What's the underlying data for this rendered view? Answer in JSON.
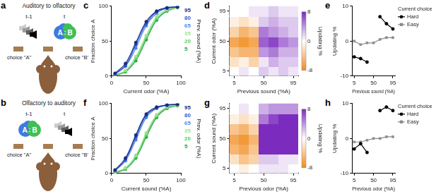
{
  "chart_data": [
    {
      "panel_label": "c",
      "type": "line",
      "x_label": "Current odor (%A)",
      "y_label": "Fraction choice A",
      "x": [
        5,
        20,
        35,
        50,
        65,
        80,
        95
      ],
      "xlim": [
        0,
        100
      ],
      "xticks": [
        0,
        50,
        100
      ],
      "ylim": [
        0,
        100
      ],
      "yticks": [
        0,
        50,
        100
      ],
      "grid": false,
      "legend": "right",
      "legend_title": "Prev. sound (%A)",
      "marker": "circle",
      "line_style": "smooth",
      "series": [
        {
          "name": "95",
          "color": "#1b2a80",
          "values": [
            4,
            18,
            48,
            78,
            93,
            98,
            99
          ]
        },
        {
          "name": "80",
          "color": "#2f55d4",
          "values": [
            3,
            15,
            45,
            75,
            92,
            97,
            99
          ]
        },
        {
          "name": "65",
          "color": "#4a86e8",
          "values": [
            3,
            14,
            40,
            72,
            90,
            97,
            99
          ]
        },
        {
          "name": "35",
          "color": "#9fe08e",
          "values": [
            2,
            8,
            28,
            58,
            85,
            95,
            98
          ]
        },
        {
          "name": "20",
          "color": "#4fcf5e",
          "values": [
            2,
            7,
            25,
            55,
            82,
            94,
            98
          ]
        },
        {
          "name": "5",
          "color": "#23a248",
          "values": [
            1,
            6,
            22,
            52,
            80,
            93,
            98
          ]
        }
      ]
    },
    {
      "panel_label": "d",
      "type": "heatmap",
      "x_label": "Previous sound (%A)",
      "y_label": "Current odor (%A)",
      "x": [
        5,
        20,
        35,
        50,
        65,
        80,
        95
      ],
      "y": [
        5,
        20,
        35,
        50,
        65,
        80,
        95
      ],
      "xlim": [
        -2.5,
        102.5
      ],
      "xticks": [
        5,
        50,
        95
      ],
      "ylim": [
        -2.5,
        102.5
      ],
      "yticks": [
        5,
        50,
        95
      ],
      "cells": [
        [
          0,
          1,
          0,
          2,
          1,
          2,
          1
        ],
        [
          -2,
          -1,
          -3,
          1,
          3,
          2,
          2
        ],
        [
          -4,
          -5,
          -5,
          4,
          5,
          3,
          3
        ],
        [
          -6,
          -7,
          -6,
          6,
          7,
          5,
          4
        ],
        [
          -3,
          -5,
          -4,
          5,
          4,
          3,
          2
        ],
        [
          -1,
          -2,
          -1,
          2,
          3,
          2,
          2
        ],
        [
          0,
          0,
          1,
          1,
          2,
          1,
          1
        ]
      ],
      "colorbar": {
        "label": "Updating %",
        "range": [
          -8,
          8
        ],
        "ticks": [
          -8,
          0,
          8
        ],
        "colors": [
          "#f08a1c",
          "#ffffff",
          "#7b2cbf"
        ]
      }
    },
    {
      "panel_label": "e",
      "type": "line",
      "x_label": "Previous sound (%A)",
      "y_label": "Updating %",
      "x": [
        5,
        20,
        35,
        50,
        65,
        80,
        95
      ],
      "xlim": [
        0,
        100
      ],
      "xticks": [
        5,
        50,
        95
      ],
      "ylim": [
        -10,
        10
      ],
      "yticks": [
        -10,
        0,
        10
      ],
      "grid": false,
      "legend": "right",
      "legend_title": "Current choice",
      "series": [
        {
          "name": "Hard",
          "color": "#000000",
          "marker": "circle",
          "values": [
            -4.5,
            -5,
            -6,
            null,
            7,
            5,
            3.5
          ]
        },
        {
          "name": "Easy",
          "color": "#8c8c8c",
          "marker": "square",
          "values": [
            0,
            -1,
            -0.5,
            -0.5,
            0.5,
            1,
            1
          ]
        }
      ]
    },
    {
      "panel_label": "f",
      "type": "line",
      "x_label": "Current sound (%A)",
      "y_label": "Fraction choice A",
      "x": [
        5,
        20,
        35,
        50,
        65,
        80,
        95
      ],
      "xlim": [
        0,
        100
      ],
      "xticks": [
        0,
        50,
        100
      ],
      "ylim": [
        0,
        100
      ],
      "yticks": [
        0,
        50,
        100
      ],
      "grid": false,
      "legend": "right",
      "legend_title": "Prev. odor (%A)",
      "marker": "circle",
      "line_style": "smooth",
      "series": [
        {
          "name": "95",
          "color": "#1b2a80",
          "values": [
            5,
            22,
            55,
            85,
            95,
            98,
            99
          ]
        },
        {
          "name": "80",
          "color": "#2f55d4",
          "values": [
            4,
            20,
            52,
            83,
            94,
            98,
            99
          ]
        },
        {
          "name": "65",
          "color": "#4a86e8",
          "values": [
            4,
            18,
            48,
            80,
            93,
            97,
            99
          ]
        },
        {
          "name": "35",
          "color": "#9fe08e",
          "values": [
            2,
            8,
            26,
            58,
            84,
            95,
            98
          ]
        },
        {
          "name": "20",
          "color": "#4fcf5e",
          "values": [
            2,
            7,
            24,
            55,
            82,
            94,
            98
          ]
        },
        {
          "name": "5",
          "color": "#23a248",
          "values": [
            1,
            6,
            22,
            52,
            80,
            93,
            97
          ]
        }
      ]
    },
    {
      "panel_label": "g",
      "type": "heatmap",
      "x_label": "Previous odor (%A)",
      "y_label": "Current sound (%A)",
      "x": [
        5,
        20,
        35,
        50,
        65,
        80,
        95
      ],
      "y": [
        5,
        20,
        35,
        50,
        65,
        80,
        95
      ],
      "xlim": [
        -2.5,
        102.5
      ],
      "xticks": [
        5,
        50,
        95
      ],
      "ylim": [
        -2.5,
        102.5
      ],
      "yticks": [
        5,
        50,
        95
      ],
      "cells": [
        [
          0,
          -1,
          0,
          1,
          1,
          1,
          0
        ],
        [
          -2,
          -4,
          -3,
          2,
          2,
          1,
          1
        ],
        [
          -5,
          -6,
          -4,
          8,
          8,
          8,
          8
        ],
        [
          -6,
          -7,
          -5,
          8,
          8,
          8,
          8
        ],
        [
          -4,
          -5,
          -3,
          8,
          8,
          8,
          8
        ],
        [
          -1,
          -2,
          -1,
          5,
          7,
          8,
          8
        ],
        [
          0,
          1,
          0,
          3,
          4,
          4,
          4
        ]
      ],
      "colorbar": {
        "label": "Updating %",
        "range": [
          -8,
          8
        ],
        "ticks": [
          -8,
          0,
          8
        ],
        "colors": [
          "#f08a1c",
          "#ffffff",
          "#7b2cbf"
        ]
      }
    },
    {
      "panel_label": "h",
      "type": "line",
      "x_label": "Previous odor (%A)",
      "y_label": "Updating %",
      "x": [
        5,
        20,
        35,
        50,
        65,
        80,
        95
      ],
      "xlim": [
        0,
        100
      ],
      "xticks": [
        5,
        50,
        95
      ],
      "ylim": [
        -10,
        10
      ],
      "yticks": [
        -10,
        0,
        10
      ],
      "grid": false,
      "legend": "right",
      "legend_title": "Current choice",
      "series": [
        {
          "name": "Hard",
          "color": "#000000",
          "marker": "circle",
          "values": [
            -3,
            -1.5,
            -4,
            null,
            8,
            9,
            8
          ]
        },
        {
          "name": "Easy",
          "color": "#8c8c8c",
          "marker": "square",
          "values": [
            -1,
            -1,
            -0.5,
            0,
            0,
            0.5,
            0.5
          ]
        }
      ]
    }
  ],
  "diagrams": [
    {
      "panel_label": "a",
      "title": "Auditory to olfactory",
      "steps": [
        {
          "time": "t-1",
          "type": "sound"
        },
        {
          "time": "t",
          "type": "odor",
          "labels": [
            "A",
            "B"
          ],
          "separator": ":"
        }
      ],
      "choices": [
        "choice \"A\"",
        "choice \"B\""
      ]
    },
    {
      "panel_label": "b",
      "title": "Olfactory to auditory",
      "steps": [
        {
          "time": "t-1",
          "type": "odor",
          "labels": [
            "A",
            "B"
          ],
          "separator": ":"
        },
        {
          "time": "t",
          "type": "sound"
        }
      ],
      "choices": [
        "choice \"A\"",
        "choice \"B\""
      ]
    }
  ]
}
